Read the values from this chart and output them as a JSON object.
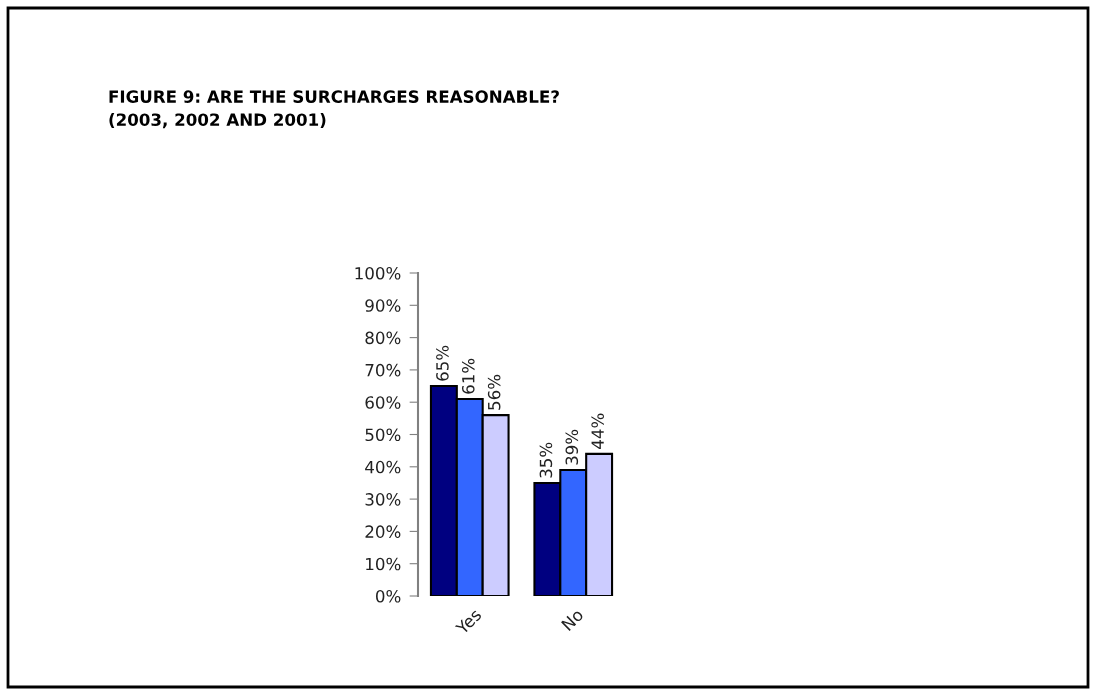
{
  "chart_data": {
    "type": "bar",
    "title": "FIGURE 9: ARE THE SURCHARGES REASONABLE?\n(2003, 2002 AND 2001)",
    "categories": [
      "Yes",
      "No"
    ],
    "series": [
      {
        "color": "#000080",
        "values": [
          65,
          35
        ],
        "value_labels": [
          "65%",
          "35%"
        ]
      },
      {
        "color": "#3366ff",
        "values": [
          61,
          39
        ],
        "value_labels": [
          "61%",
          "39%"
        ]
      },
      {
        "color": "#ccccff",
        "values": [
          56,
          44
        ],
        "value_labels": [
          "56%",
          "44%"
        ]
      }
    ],
    "ylim": [
      0,
      100
    ],
    "yticks": [
      {
        "value": 0,
        "label": "0%"
      },
      {
        "value": 10,
        "label": "10%"
      },
      {
        "value": 20,
        "label": "20%"
      },
      {
        "value": 30,
        "label": "30%"
      },
      {
        "value": 40,
        "label": "40%"
      },
      {
        "value": 50,
        "label": "50%"
      },
      {
        "value": 60,
        "label": "60%"
      },
      {
        "value": 70,
        "label": "70%"
      },
      {
        "value": 80,
        "label": "80%"
      },
      {
        "value": 90,
        "label": "90%"
      },
      {
        "value": 100,
        "label": "100%"
      }
    ],
    "grid": false
  }
}
